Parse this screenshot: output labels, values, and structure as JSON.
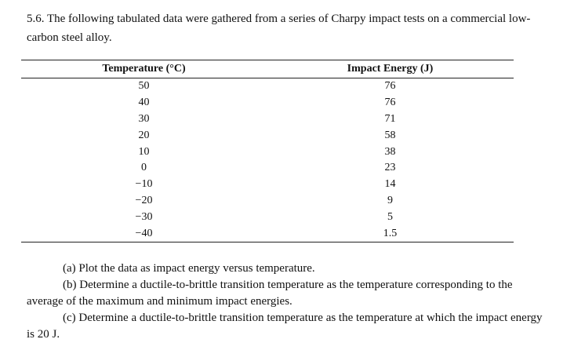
{
  "problem": {
    "intro": "5.6. The following tabulated data were gathered from a series of Charpy impact tests on a commercial low-carbon steel alloy."
  },
  "table": {
    "headers": [
      "Temperature (°C)",
      "Impact Energy (J)"
    ],
    "rows": [
      [
        "50",
        "76"
      ],
      [
        "40",
        "76"
      ],
      [
        "30",
        "71"
      ],
      [
        "20",
        "58"
      ],
      [
        "10",
        "38"
      ],
      [
        "0",
        "23"
      ],
      [
        "−10",
        "14"
      ],
      [
        "−20",
        "9"
      ],
      [
        "−30",
        "5"
      ],
      [
        "−40",
        "1.5"
      ]
    ]
  },
  "questions": [
    "(a) Plot the data as impact energy versus temperature.",
    "(b) Determine a ductile-to-brittle transition temperature as the temperature corresponding to the average of the maximum and minimum impact energies.",
    "(c) Determine a ductile-to-brittle transition temperature as the temperature at which the impact energy is 20 J."
  ]
}
